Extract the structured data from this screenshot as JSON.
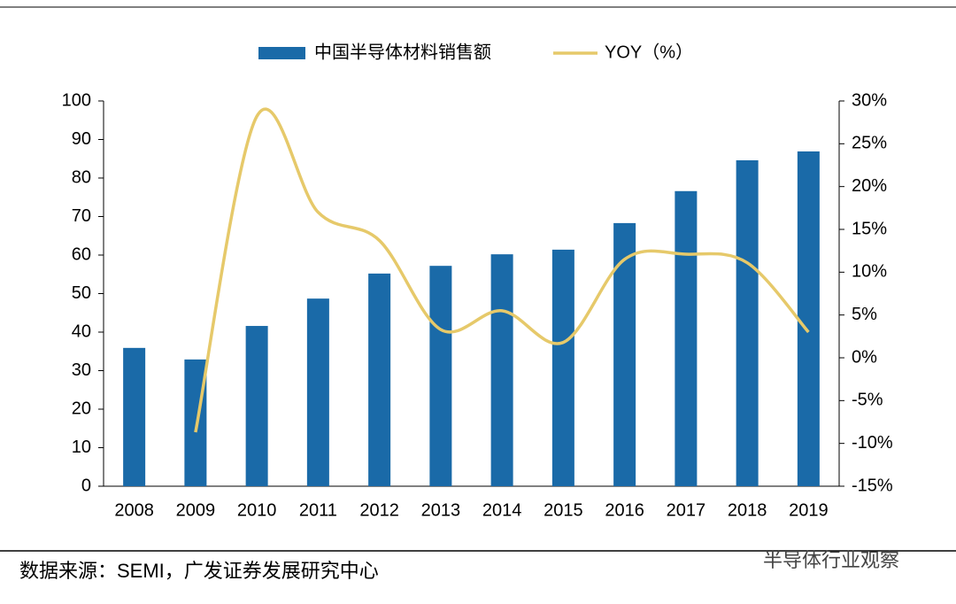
{
  "chart_data": {
    "type": "bar_line",
    "categories": [
      "2008",
      "2009",
      "2010",
      "2011",
      "2012",
      "2013",
      "2014",
      "2015",
      "2016",
      "2017",
      "2018",
      "2019"
    ],
    "series": [
      {
        "name": "中国半导体材料销售额",
        "type": "bar",
        "color": "#1a6aa8",
        "values": [
          35.9,
          32.9,
          41.6,
          48.7,
          55.2,
          57.2,
          60.2,
          61.4,
          68.3,
          76.6,
          84.6,
          86.9
        ]
      },
      {
        "name": "YOY（%）",
        "type": "line",
        "axis": "y2",
        "color": "#e6c96a",
        "values": [
          null,
          -8.7,
          28.2,
          17.0,
          13.7,
          3.3,
          5.5,
          1.8,
          11.5,
          12.1,
          11.1,
          3.0
        ]
      }
    ],
    "ylim": [
      0,
      100
    ],
    "yticks": [
      0,
      10,
      20,
      30,
      40,
      50,
      60,
      70,
      80,
      90,
      100
    ],
    "y2lim": [
      -15,
      30
    ],
    "y2ticks": [
      {
        "value": -15,
        "label": "-15%"
      },
      {
        "value": -10,
        "label": "-10%"
      },
      {
        "value": -5,
        "label": "-5%"
      },
      {
        "value": 0,
        "label": "0%"
      },
      {
        "value": 5,
        "label": "5%"
      },
      {
        "value": 10,
        "label": "10%"
      },
      {
        "value": 15,
        "label": "15%"
      },
      {
        "value": 20,
        "label": "20%"
      },
      {
        "value": 25,
        "label": "25%"
      },
      {
        "value": 30,
        "label": "30%"
      }
    ],
    "legend": "top",
    "source": "数据来源：SEMI，广发证券发展研究中心",
    "watermark": "半导体行业观察"
  }
}
